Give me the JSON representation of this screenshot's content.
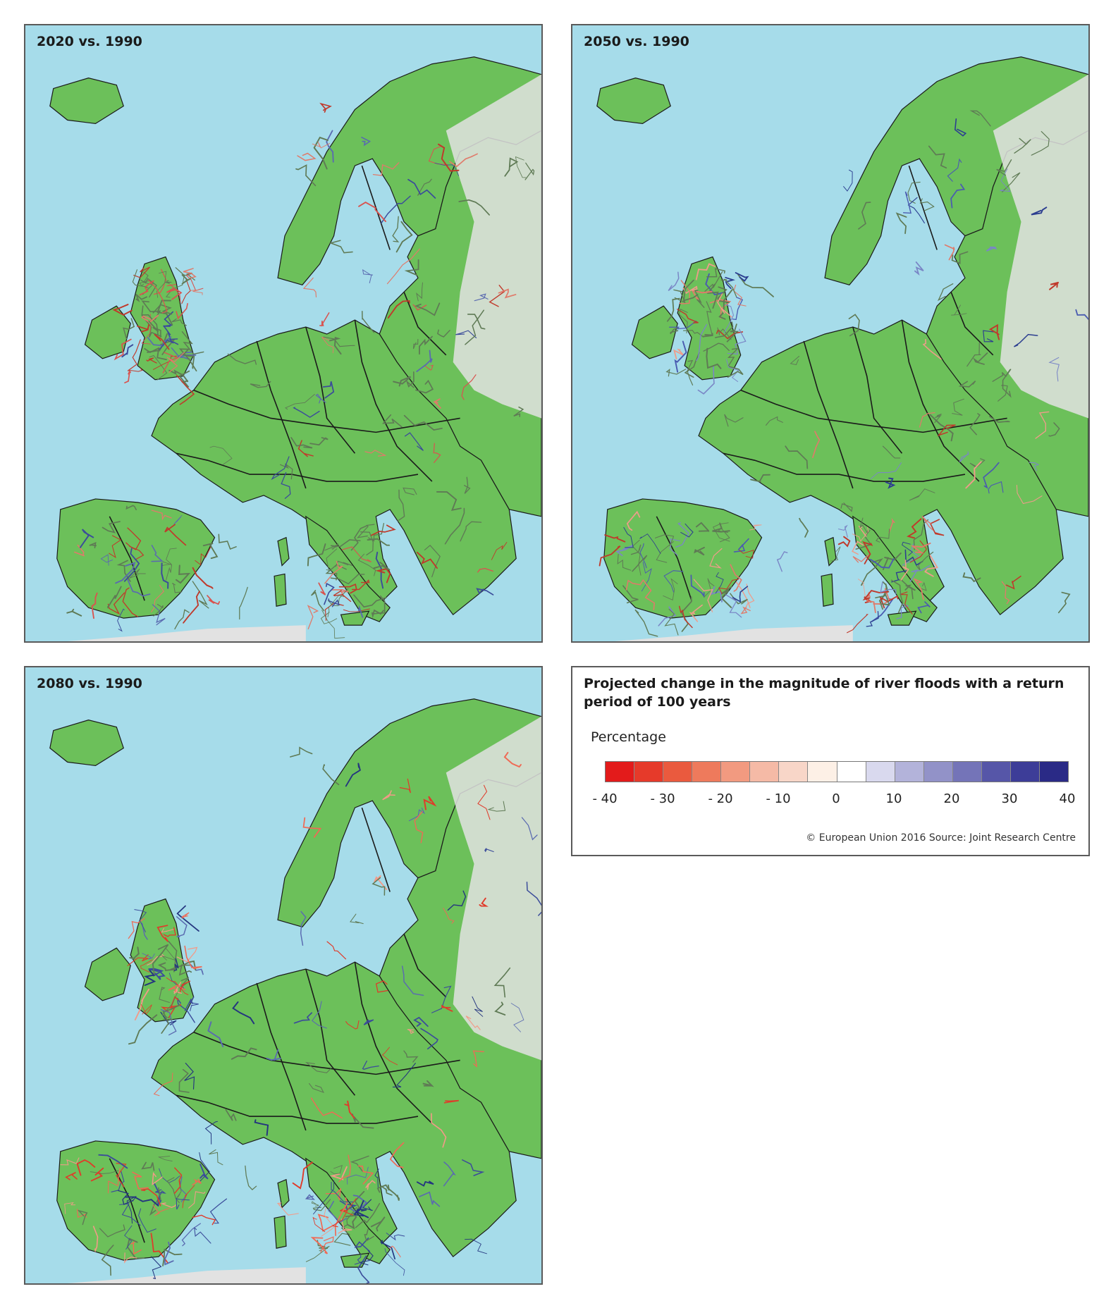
{
  "panels": [
    {
      "title": "2020 vs. 1990",
      "scenario": "2020"
    },
    {
      "title": "2050 vs. 1990",
      "scenario": "2050"
    },
    {
      "title": "2080 vs. 1990",
      "scenario": "2080"
    }
  ],
  "legend": {
    "title": "Projected change in the magnitude of river floods with a return period of 100 years",
    "subtitle": "Percentage",
    "ticks": [
      "- 40",
      "- 30",
      "- 20",
      "- 10",
      "0",
      "10",
      "20",
      "30",
      "40"
    ],
    "tick_values": [
      -40,
      -30,
      -20,
      -10,
      0,
      10,
      20,
      30,
      40
    ],
    "colors": [
      "#e31b1b",
      "#e63a2a",
      "#ea5a3e",
      "#ee7a5c",
      "#f29a80",
      "#f5baa6",
      "#f8d6c8",
      "#fdf0e6",
      "#ffffff",
      "#d9d9ee",
      "#b3b3da",
      "#9292c8",
      "#7474b8",
      "#5656a8",
      "#3d3d98",
      "#2a2a86"
    ],
    "credit": "© European Union 2016 Source: Joint Research Centre"
  },
  "colors": {
    "sea": "#a6dcea",
    "land": "#6cc05a",
    "outside": "#e2e2e2",
    "border": "#1a1a1a"
  }
}
